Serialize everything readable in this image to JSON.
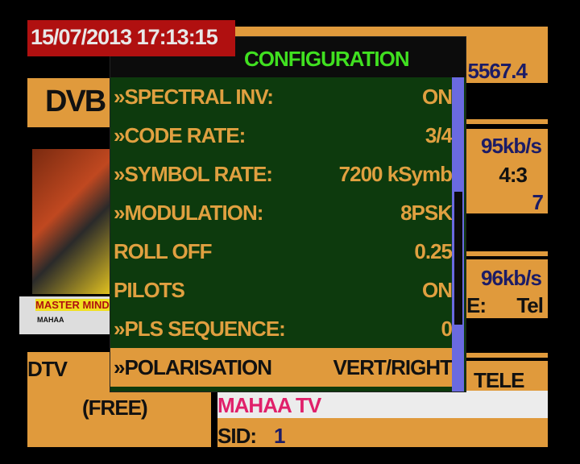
{
  "datetime": "15/07/2013 17:13:15",
  "background": {
    "frequency": "5567.4",
    "standard": "DVB",
    "video_rate": "95kb/s",
    "aspect": "4:3",
    "video_value": "7",
    "audio_rate": "96kb/s",
    "language_label": "E:",
    "language": "Tel",
    "type": "DTV",
    "scrambling": "(FREE)",
    "provider": "TELE",
    "channel_name": "MAHAA TV",
    "sid_label": "SID:",
    "sid": "1",
    "thumbnail_banner": "MASTER MINDS",
    "thumbnail_sub": "MAHAA"
  },
  "panel": {
    "title": "CONFIGURATION",
    "rows": [
      {
        "label": "»SPECTRAL INV:",
        "value": "ON"
      },
      {
        "label": "»CODE RATE:",
        "value": "3/4"
      },
      {
        "label": "»SYMBOL RATE:",
        "value": "7200 kSymb"
      },
      {
        "label": "»MODULATION:",
        "value": "8PSK"
      },
      {
        "label": "ROLL OFF",
        "value": "0.25"
      },
      {
        "label": "PILOTS",
        "value": "ON"
      },
      {
        "label": "»PLS SEQUENCE:",
        "value": "0"
      },
      {
        "label": "»POLARISATION",
        "value": "VERT/RIGHT"
      }
    ],
    "selected_index": 7
  },
  "colors": {
    "accent": "#e09a3c",
    "panel": "#0d3a0d",
    "title": "#40e020",
    "date_bg": "#b01010",
    "channel": "#e0206a"
  }
}
